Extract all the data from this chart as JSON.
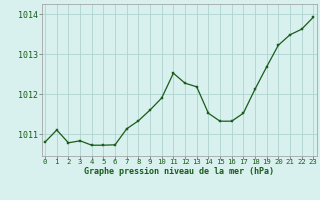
{
  "x": [
    0,
    1,
    2,
    3,
    4,
    5,
    6,
    7,
    8,
    9,
    10,
    11,
    12,
    13,
    14,
    15,
    16,
    17,
    18,
    19,
    20,
    21,
    22,
    23
  ],
  "y": [
    1010.8,
    1011.1,
    1010.78,
    1010.83,
    1010.72,
    1010.72,
    1010.73,
    1011.13,
    1011.33,
    1011.6,
    1011.9,
    1012.52,
    1012.27,
    1012.18,
    1011.52,
    1011.32,
    1011.32,
    1011.52,
    1012.12,
    1012.68,
    1013.22,
    1013.48,
    1013.62,
    1013.92
  ],
  "line_color": "#1a5c1a",
  "marker_color": "#1a5c1a",
  "bg_color": "#d8f0ee",
  "grid_color": "#b0d4d0",
  "axis_label_color": "#1a5c1a",
  "xlabel": "Graphe pression niveau de la mer (hPa)",
  "ylim_min": 1010.45,
  "ylim_max": 1014.25,
  "yticks": [
    1011,
    1012,
    1013,
    1014
  ],
  "xticks": [
    0,
    1,
    2,
    3,
    4,
    5,
    6,
    7,
    8,
    9,
    10,
    11,
    12,
    13,
    14,
    15,
    16,
    17,
    18,
    19,
    20,
    21,
    22,
    23
  ],
  "xlabel_fontsize": 6.0,
  "ytick_fontsize": 6.0,
  "xtick_fontsize": 5.2
}
